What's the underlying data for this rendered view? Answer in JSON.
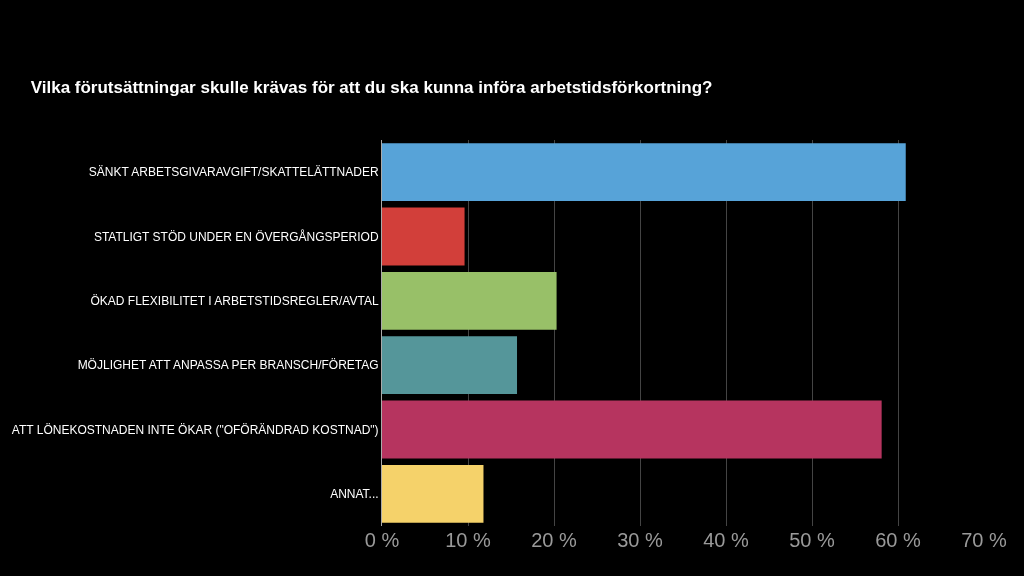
{
  "chart_data": {
    "type": "bar",
    "orientation": "horizontal",
    "title": "Vilka förutsättningar skulle krävas för att du ska kunna införa arbetstidsförkortning?",
    "categories": [
      "SÄNKT ARBETSGIVARAVGIFT/SKATTELÄTTNADER",
      "STATLIGT STÖD UNDER EN ÖVERGÅNGSPERIOD",
      "ÖKAD FLEXIBILITET I ARBETSTIDSREGLER/AVTAL",
      "MÖJLIGHET ATT ANPASSA PER BRANSCH/FÖRETAG",
      "ATT LÖNEKOSTNADEN INTE ÖKAR (\"OFÖRÄNDRAD KOSTNAD\")",
      "ANNAT..."
    ],
    "values": [
      60.9,
      9.6,
      20.3,
      15.7,
      58.1,
      11.8
    ],
    "colors": [
      "#57a3d8",
      "#d23f3a",
      "#98c068",
      "#55969a",
      "#b6345f",
      "#f5d26a"
    ],
    "xlim": [
      0,
      70
    ],
    "xticks": [
      {
        "value": 0,
        "label": "0 %"
      },
      {
        "value": 10,
        "label": "10 %"
      },
      {
        "value": 20,
        "label": "20 %"
      },
      {
        "value": 30,
        "label": "30 %"
      },
      {
        "value": 40,
        "label": "40 %"
      },
      {
        "value": 50,
        "label": "50 %"
      },
      {
        "value": 60,
        "label": "60 %"
      },
      {
        "value": 70,
        "label": "70 %"
      }
    ],
    "grid": "x"
  }
}
